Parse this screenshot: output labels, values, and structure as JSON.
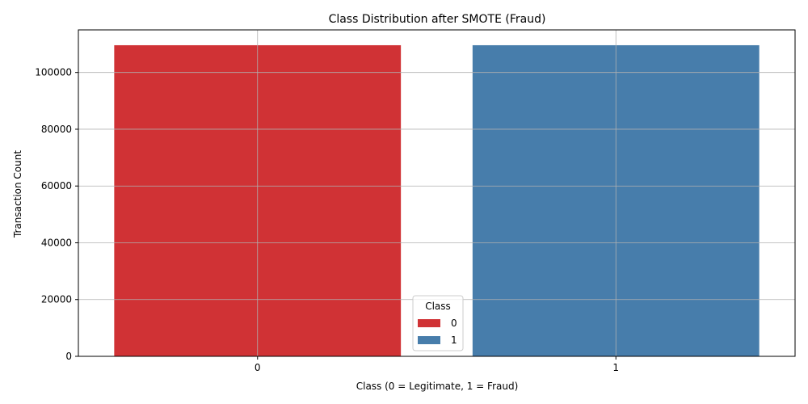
{
  "chart_data": {
    "type": "bar",
    "title": "Class Distribution after SMOTE (Fraud)",
    "xlabel": "Class (0 = Legitimate, 1 = Fraud)",
    "ylabel": "Transaction Count",
    "categories": [
      "0",
      "1"
    ],
    "values": [
      109600,
      109600
    ],
    "ylim": [
      0,
      115000
    ],
    "yticks": [
      0,
      20000,
      40000,
      60000,
      80000,
      100000
    ],
    "grid": true,
    "colors": [
      "#d03235",
      "#477dab"
    ],
    "legend": {
      "title": "Class",
      "placement": "lower-center",
      "entries": [
        {
          "label": "0",
          "color": "#d03235"
        },
        {
          "label": "1",
          "color": "#477dab"
        }
      ]
    }
  }
}
